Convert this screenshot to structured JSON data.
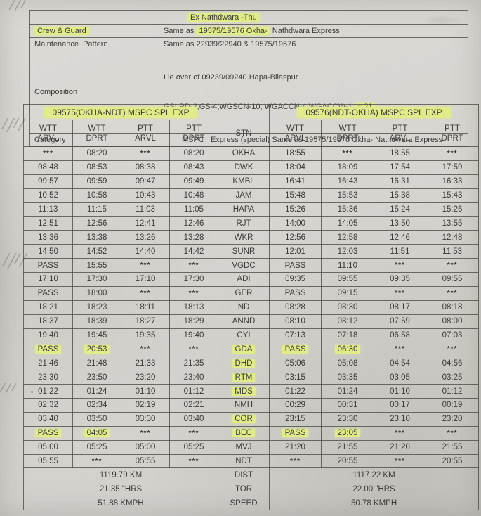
{
  "info_table": {
    "schedule": {
      "label": "",
      "hl": "Ex Nathdwara -Thu"
    },
    "crew": {
      "label": "Crew & Guard",
      "pre": "Same as ",
      "hl": "19575/19576 Okha-",
      "post": " Nathdwara Express"
    },
    "maintenance": {
      "label": "Maintenance  Pattern",
      "value": "Same as 22939/22940 & 19575/19576"
    },
    "composition": {
      "label": "Composition",
      "line1": "Lie over of 09239/09240 Hapa-Bilaspur",
      "line2_pre": "GSLRD-2,GS-4,WGSCN-10, WGACCN-4,WGACCW-1 ",
      "line2_hl": "= 21"
    },
    "category": {
      "label": "Category",
      "value": "MSPC   Express (special) Same as 19575/19576 Okha- Nathdwara Express"
    }
  },
  "timetable": {
    "train_left": "09575(OKHA-NDT) MSPC SPL EXP",
    "train_right": "09576(NDT-OKHA) MSPC SPL EXP",
    "stn_label": "STN",
    "col_headers": [
      {
        "l1": "WTT",
        "l2": "ARVL"
      },
      {
        "l1": "WTT",
        "l2": "DPRT"
      },
      {
        "l1": "PTT",
        "l2": "ARVL"
      },
      {
        "l1": "PTT",
        "l2": "DPRT"
      }
    ],
    "rows": [
      {
        "left": [
          "***",
          "08:20",
          "***",
          "08:20"
        ],
        "stn": "OKHA",
        "right": [
          "18:55",
          "***",
          "18:55",
          "***"
        ],
        "hl_left": [],
        "hl_stn": false,
        "hl_right": []
      },
      {
        "left": [
          "08:48",
          "08:53",
          "08:38",
          "08:43"
        ],
        "stn": "DWK",
        "right": [
          "18:04",
          "18:09",
          "17:54",
          "17:59"
        ],
        "hl_left": [],
        "hl_stn": false,
        "hl_right": []
      },
      {
        "left": [
          "09:57",
          "09:59",
          "09:47",
          "09:49"
        ],
        "stn": "KMBL",
        "right": [
          "16:41",
          "16:43",
          "16:31",
          "16:33"
        ],
        "hl_left": [],
        "hl_stn": false,
        "hl_right": []
      },
      {
        "left": [
          "10:52",
          "10:58",
          "10:43",
          "10:48"
        ],
        "stn": "JAM",
        "right": [
          "15:48",
          "15:53",
          "15:38",
          "15:43"
        ],
        "hl_left": [],
        "hl_stn": false,
        "hl_right": []
      },
      {
        "left": [
          "11:13",
          "11:15",
          "11:03",
          "11:05"
        ],
        "stn": "HAPA",
        "right": [
          "15:26",
          "15:36",
          "15:24",
          "15:26"
        ],
        "hl_left": [],
        "hl_stn": false,
        "hl_right": []
      },
      {
        "left": [
          "12:51",
          "12:56",
          "12:41",
          "12:46"
        ],
        "stn": "RJT",
        "right": [
          "14:00",
          "14:05",
          "13:50",
          "13:55"
        ],
        "hl_left": [],
        "hl_stn": false,
        "hl_right": []
      },
      {
        "left": [
          "13:36",
          "13:38",
          "13:26",
          "13:28"
        ],
        "stn": "WKR",
        "right": [
          "12:56",
          "12:58",
          "12:46",
          "12:48"
        ],
        "hl_left": [],
        "hl_stn": false,
        "hl_right": []
      },
      {
        "left": [
          "14:50",
          "14:52",
          "14:40",
          "14:42"
        ],
        "stn": "SUNR",
        "right": [
          "12:01",
          "12:03",
          "11:51",
          "11:53"
        ],
        "hl_left": [],
        "hl_stn": false,
        "hl_right": []
      },
      {
        "left": [
          "PASS",
          "15:55",
          "***",
          "***"
        ],
        "stn": "VGDC",
        "right": [
          "PASS",
          "11:10",
          "***",
          "***"
        ],
        "hl_left": [],
        "hl_stn": false,
        "hl_right": []
      },
      {
        "left": [
          "17:10",
          "17:30",
          "17:10",
          "17:30"
        ],
        "stn": "ADI",
        "right": [
          "09:35",
          "09:55",
          "09:35",
          "09:55"
        ],
        "hl_left": [],
        "hl_stn": false,
        "hl_right": []
      },
      {
        "left": [
          "PASS",
          "18:00",
          "***",
          "***"
        ],
        "stn": "GER",
        "right": [
          "PASS",
          "09:15",
          "***",
          "***"
        ],
        "hl_left": [],
        "hl_stn": false,
        "hl_right": []
      },
      {
        "left": [
          "18:21",
          "18:23",
          "18:11",
          "18:13"
        ],
        "stn": "ND",
        "right": [
          "08:28",
          "08:30",
          "08:17",
          "08:18"
        ],
        "hl_left": [],
        "hl_stn": false,
        "hl_right": []
      },
      {
        "left": [
          "18:37",
          "18:39",
          "18:27",
          "18:29"
        ],
        "stn": "ANND",
        "right": [
          "08:10",
          "08:12",
          "07:59",
          "08:00"
        ],
        "hl_left": [],
        "hl_stn": false,
        "hl_right": []
      },
      {
        "left": [
          "19:40",
          "19:45",
          "19:35",
          "19:40"
        ],
        "stn": "CYI",
        "right": [
          "07:13",
          "07:18",
          "06:58",
          "07:03"
        ],
        "hl_left": [],
        "hl_stn": false,
        "hl_right": []
      },
      {
        "left": [
          "PASS",
          "20:53",
          "***",
          "***"
        ],
        "stn": "GDA",
        "right": [
          "PASS",
          "06:30",
          "***",
          "***"
        ],
        "hl_left": [
          0,
          1
        ],
        "hl_stn": true,
        "hl_right": [
          0,
          1
        ]
      },
      {
        "left": [
          "21:46",
          "21:48",
          "21:33",
          "21:35"
        ],
        "stn": "DHD",
        "right": [
          "05:06",
          "05:08",
          "04:54",
          "04:56"
        ],
        "hl_left": [],
        "hl_stn": true,
        "hl_right": []
      },
      {
        "left": [
          "23:30",
          "23:50",
          "23:20",
          "23:40"
        ],
        "stn": "RTM",
        "right": [
          "03:15",
          "03:35",
          "03:05",
          "03:25"
        ],
        "hl_left": [],
        "hl_stn": true,
        "hl_right": []
      },
      {
        "left": [
          "01:22",
          "01:24",
          "01:10",
          "01:12"
        ],
        "stn": "MDS",
        "right": [
          "01:22",
          "01:24",
          "01:10",
          "01:12"
        ],
        "hl_left": [],
        "hl_stn": true,
        "hl_right": []
      },
      {
        "left": [
          "02:32",
          "02:34",
          "02:19",
          "02:21"
        ],
        "stn": "NMH",
        "right": [
          "00:29",
          "00:31",
          "00:17",
          "00:19"
        ],
        "hl_left": [],
        "hl_stn": false,
        "hl_right": []
      },
      {
        "left": [
          "03:40",
          "03:50",
          "03:30",
          "03:40"
        ],
        "stn": "COR",
        "right": [
          "23:15",
          "23:30",
          "23:10",
          "23:20"
        ],
        "hl_left": [],
        "hl_stn": true,
        "hl_right": []
      },
      {
        "left": [
          "PASS",
          "04:05",
          "***",
          "***"
        ],
        "stn": "BEC",
        "right": [
          "PASS",
          "23:05",
          "***",
          "***"
        ],
        "hl_left": [
          0,
          1
        ],
        "hl_stn": true,
        "hl_right": [
          0,
          1
        ]
      },
      {
        "left": [
          "05:00",
          "05:25",
          "05:00",
          "05:25"
        ],
        "stn": "MVJ",
        "right": [
          "21:20",
          "21:55",
          "21:20",
          "21:55"
        ],
        "hl_left": [],
        "hl_stn": false,
        "hl_right": []
      },
      {
        "left": [
          "05:55",
          "***",
          "05:55",
          "***"
        ],
        "stn": "NDT",
        "right": [
          "***",
          "20:55",
          "***",
          "20:55"
        ],
        "hl_left": [],
        "hl_stn": false,
        "hl_right": []
      }
    ],
    "summary": [
      {
        "left": "1119.79 KM",
        "label": "DIST",
        "right": "1117.22 KM"
      },
      {
        "left": "21.35 \"HRS",
        "label": "TOR",
        "right": "22.00 \"HRS"
      },
      {
        "left": "51.88 KMPH",
        "label": "SPEED",
        "right": "50.78 KMPH"
      }
    ]
  }
}
